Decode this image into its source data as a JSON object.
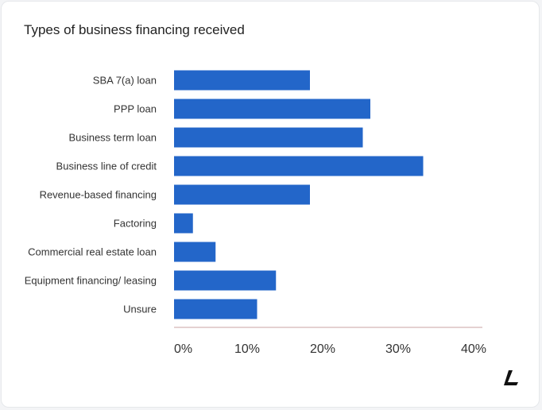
{
  "chart_data": {
    "type": "bar",
    "orientation": "horizontal",
    "title": "Types of business financing received",
    "categories": [
      "SBA 7(a) loan",
      "PPP loan",
      "Business term loan",
      "Business line of credit",
      "Revenue-based financing",
      "Factoring",
      "Commercial real estate loan",
      "Equipment financing/ leasing",
      "Unsure"
    ],
    "values": [
      18,
      26,
      25,
      33,
      18,
      2.5,
      5.5,
      13.5,
      11
    ],
    "xlim": [
      0,
      40
    ],
    "xticks": [
      "0%",
      "10%",
      "20%",
      "30%",
      "40%"
    ],
    "xtick_values": [
      0,
      10,
      20,
      30,
      40
    ],
    "grid": false,
    "bar_color": "#2366c9",
    "axis_color": "#c9a3a3"
  },
  "brand": {
    "logo_icon": "lendingtree-slash-logo-icon"
  }
}
